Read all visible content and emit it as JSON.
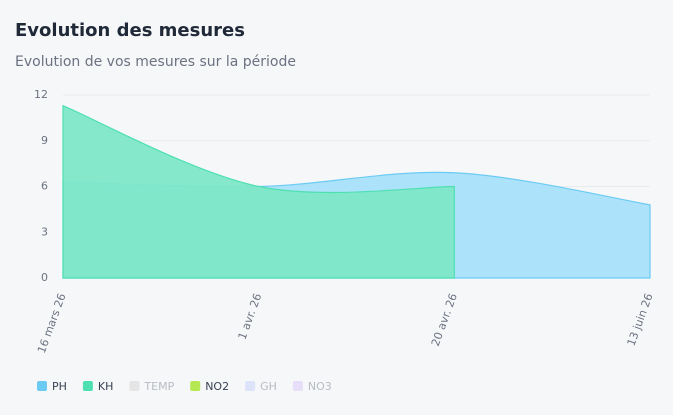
{
  "chart_data": {
    "type": "area",
    "title": "Evolution des mesures",
    "subtitle": "Evolution de vos mesures sur la période",
    "categories": [
      "16 mars 26",
      "1 avr. 26",
      "20 avr. 26",
      "13 juin 26"
    ],
    "ylim": [
      0,
      12
    ],
    "yticks": [
      0,
      3,
      6,
      9,
      12
    ],
    "grid": true,
    "series": [
      {
        "name": "PH",
        "color": "#6ccbf3",
        "fill": "#a8e0fa",
        "values": [
          6.3,
          6.0,
          6.9,
          4.8
        ]
      },
      {
        "name": "KH",
        "color": "#4fe0b0",
        "fill": "#7ee7c8",
        "values": [
          11.3,
          6.0,
          6.0,
          null
        ]
      },
      {
        "name": "TEMP",
        "color": "#e5e5e5",
        "hidden": true,
        "values": [
          null,
          null,
          null,
          null
        ]
      },
      {
        "name": "NO2",
        "color": "#b5e853",
        "values": [
          null,
          null,
          null,
          null
        ]
      },
      {
        "name": "GH",
        "color": "#dde3f8",
        "hidden": true,
        "values": [
          null,
          null,
          null,
          null
        ]
      },
      {
        "name": "NO3",
        "color": "#e9def8",
        "hidden": true,
        "values": [
          null,
          null,
          null,
          null
        ]
      }
    ]
  }
}
